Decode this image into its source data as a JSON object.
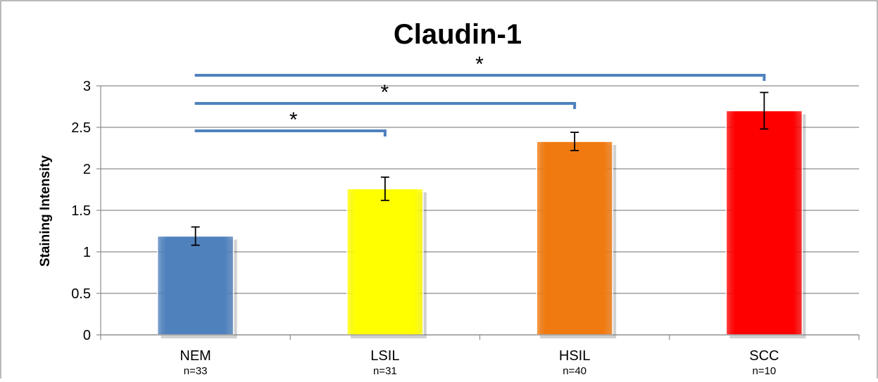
{
  "chart_data": {
    "type": "bar",
    "title": "Claudin-1",
    "xlabel": "",
    "ylabel": "Staining Intensity",
    "ylim": [
      0,
      3
    ],
    "yticks": [
      "0",
      "0.5",
      "1",
      "1.5",
      "2",
      "2.5",
      "3"
    ],
    "grid": true,
    "legend": "none",
    "categories": [
      "NEM",
      "LSIL",
      "HSIL",
      "SCC"
    ],
    "sample_sizes": [
      "n=33",
      "n=31",
      "n=40",
      "n=10"
    ],
    "values": [
      1.19,
      1.76,
      2.33,
      2.7
    ],
    "errors": [
      0.11,
      0.14,
      0.11,
      0.22
    ],
    "colors": [
      "#4f81bd",
      "#ffff00",
      "#f07a10",
      "#ff0000"
    ],
    "significance": [
      {
        "from": "NEM",
        "to": "SCC",
        "label": "*"
      },
      {
        "from": "NEM",
        "to": "HSIL",
        "label": "*"
      },
      {
        "from": "NEM",
        "to": "LSIL",
        "label": "*"
      }
    ],
    "bracket_color": "#4f81bd"
  }
}
